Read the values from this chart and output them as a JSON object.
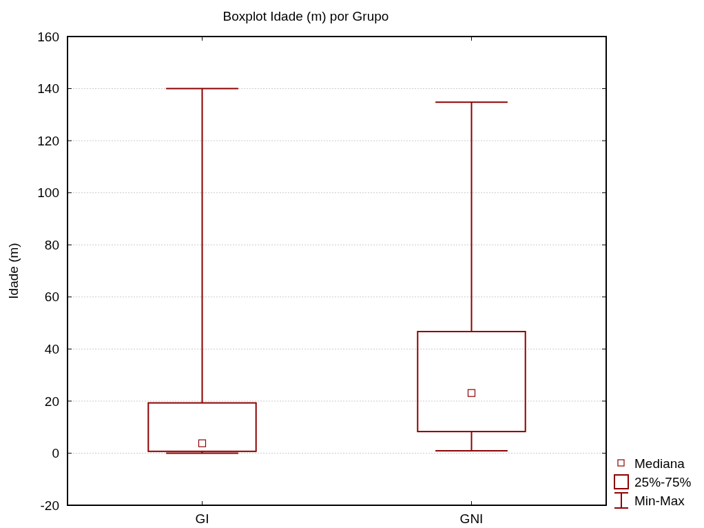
{
  "chart_data": {
    "type": "box",
    "title": "Boxplot Idade (m) por Grupo",
    "ylabel": "Idade (m)",
    "categories": [
      "GI",
      "GNI"
    ],
    "series": [
      {
        "color": "#8b0000",
        "boxes": [
          {
            "low": 0,
            "q1": 0.7,
            "median": 3.8,
            "q3": 19.3,
            "high": 140
          },
          {
            "low": 0.9,
            "q1": 8.3,
            "median": 23.1,
            "q3": 46.7,
            "high": 134.8
          }
        ]
      }
    ],
    "ylim": [
      -20,
      160
    ],
    "yticks": [
      -20,
      0,
      20,
      40,
      60,
      80,
      100,
      120,
      140,
      160
    ],
    "grid": "y",
    "annotations": [
      "Mediana",
      "25%-75%",
      "Min-Max"
    ]
  }
}
